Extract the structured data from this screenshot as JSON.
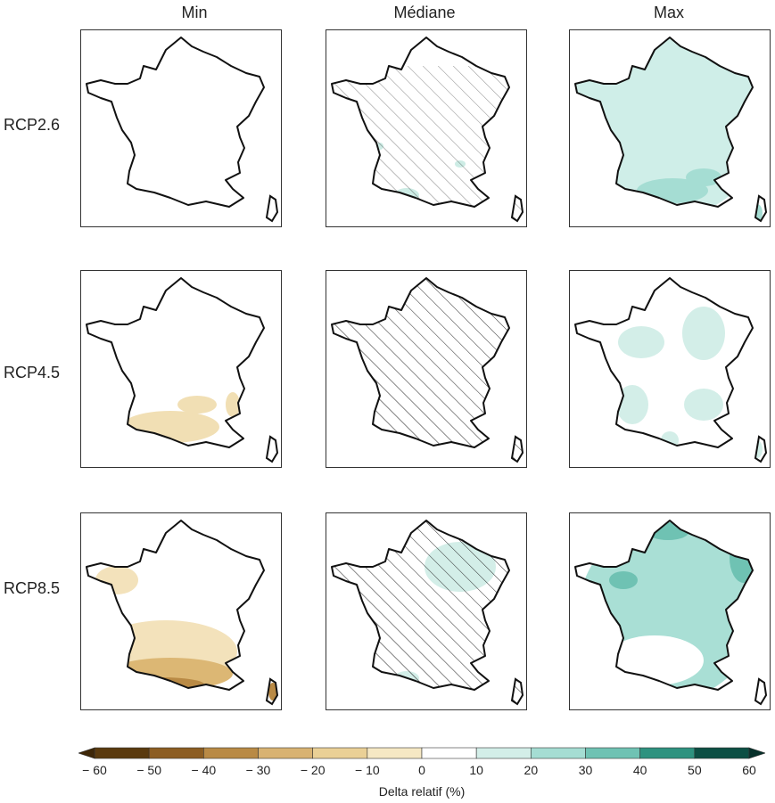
{
  "columns": [
    "Min",
    "Médiane",
    "Max"
  ],
  "rows": [
    "RCP2.6",
    "RCP4.5",
    "RCP8.5"
  ],
  "panels": [
    [
      {
        "fill": "none",
        "hatch": false
      },
      {
        "fill": "light-teal-south",
        "hatch": "partial"
      },
      {
        "fill": "teal-widespread",
        "hatch": false
      }
    ],
    [
      {
        "fill": "tan-south",
        "hatch": false
      },
      {
        "fill": "none",
        "hatch": "most"
      },
      {
        "fill": "teal-patchy",
        "hatch": false
      }
    ],
    [
      {
        "fill": "tan-widespread",
        "hatch": false
      },
      {
        "fill": "teal-northeast",
        "hatch": "most"
      },
      {
        "fill": "teal-strong",
        "hatch": false
      }
    ]
  ],
  "colorbar": {
    "ticks": [
      "− 60",
      "− 50",
      "− 40",
      "− 30",
      "− 20",
      "− 10",
      "0",
      "10",
      "20",
      "30",
      "40",
      "50",
      "60"
    ],
    "label": "Delta relatif (%)",
    "colors": [
      "#5a3a0e",
      "#8c5d22",
      "#b98a45",
      "#d8b272",
      "#ead096",
      "#f6e8c4",
      "#ffffff",
      "#ffffff",
      "#d3eee8",
      "#a5ddd3",
      "#6fc2b3",
      "#2e927f",
      "#0c4f44"
    ]
  }
}
